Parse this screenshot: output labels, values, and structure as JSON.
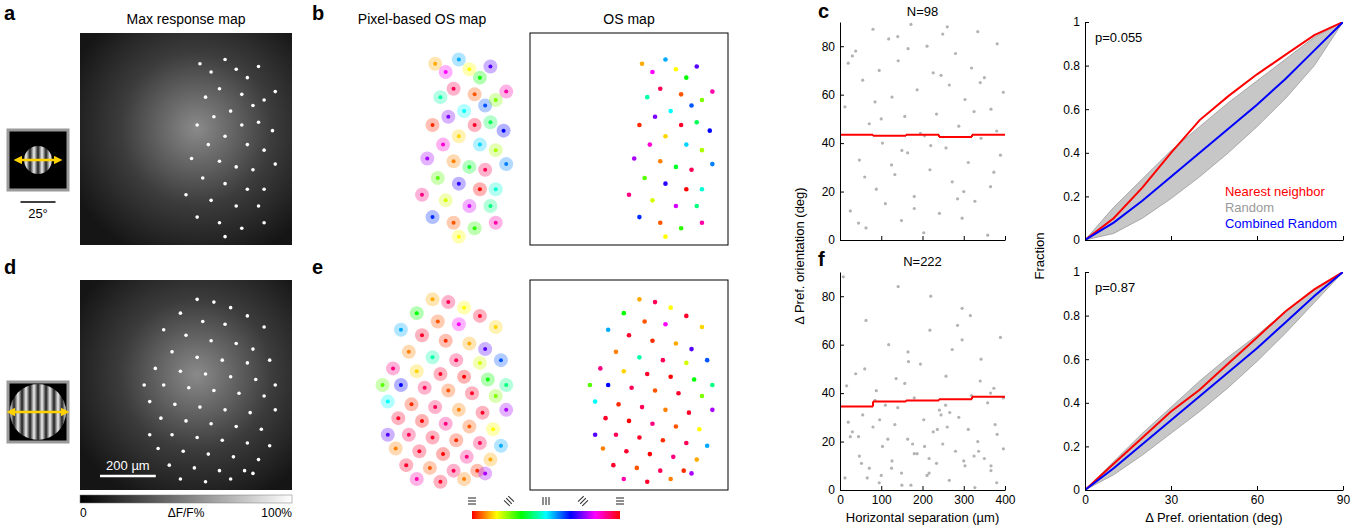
{
  "chart_data": [
    {
      "type": "stimulus",
      "letter": "a",
      "diameter": 20,
      "scale_bar": {
        "length": 25,
        "label": "25°"
      }
    },
    {
      "type": "image",
      "title": "Max response map"
    },
    {
      "type": "image",
      "letter": "b",
      "title": "Pixel-based OS map"
    },
    {
      "type": "scatter",
      "title": "OS map",
      "tick_labels": false,
      "marker": "circle",
      "xlim": [
        0,
        760
      ],
      "ylim": [
        0,
        760
      ],
      "x": [
        430,
        470,
        520,
        560,
        600,
        640,
        500,
        450,
        580,
        620,
        660,
        700,
        540,
        480,
        420,
        580,
        640,
        690,
        520,
        460,
        600,
        660,
        400,
        500,
        560,
        620,
        700,
        440,
        520,
        600,
        660,
        380,
        470,
        560,
        640,
        420,
        500,
        580,
        660,
        520
      ],
      "y": [
        110,
        140,
        95,
        130,
        160,
        120,
        200,
        230,
        220,
        260,
        240,
        210,
        280,
        300,
        330,
        330,
        320,
        350,
        370,
        400,
        400,
        420,
        450,
        460,
        480,
        490,
        470,
        520,
        540,
        560,
        560,
        580,
        600,
        620,
        620,
        660,
        680,
        700,
        680,
        730
      ],
      "pref_orientation": [
        20,
        150,
        100,
        30,
        60,
        130,
        170,
        80,
        10,
        110,
        45,
        160,
        90,
        135,
        5,
        175,
        70,
        120,
        25,
        155,
        95,
        40,
        140,
        15,
        65,
        170,
        105,
        50,
        125,
        0,
        85,
        165,
        35,
        145,
        75,
        115,
        10,
        55,
        160,
        30
      ]
    },
    {
      "type": "scatter",
      "letter": "c",
      "title": "N=98",
      "tick_labels": "y",
      "marker": "circle",
      "color": "#808080",
      "xlim": [
        0,
        400
      ],
      "ylim": [
        0,
        90
      ],
      "xticks": [
        0,
        100,
        200,
        300,
        400
      ],
      "yticks": [
        0,
        20,
        40,
        60,
        80
      ],
      "x": [
        12,
        25,
        38,
        47,
        55,
        63,
        71,
        80,
        88,
        95,
        103,
        110,
        118,
        126,
        133,
        141,
        149,
        157,
        164,
        172,
        180,
        187,
        195,
        203,
        211,
        218,
        226,
        234,
        241,
        249,
        257,
        265,
        272,
        280,
        288,
        296,
        303,
        311,
        319,
        327,
        334,
        342,
        350,
        358,
        366,
        373,
        381,
        389,
        396,
        20,
        60,
        100,
        140,
        180,
        220,
        260,
        300,
        340,
        380,
        45,
        85,
        125,
        165,
        205,
        245,
        285,
        325,
        365,
        30,
        150
      ],
      "y": [
        55,
        12,
        78,
        33,
        66,
        5,
        48,
        87,
        21,
        70,
        40,
        15,
        83,
        59,
        27,
        74,
        8,
        51,
        36,
        89,
        18,
        62,
        44,
        3,
        80,
        29,
        69,
        52,
        11,
        85,
        38,
        64,
        24,
        77,
        47,
        9,
        58,
        32,
        71,
        16,
        86,
        42,
        67,
        2,
        54,
        28,
        81,
        35,
        61,
        73,
        26,
        50,
        84,
        13,
        39,
        88,
        20,
        65,
        45,
        7,
        57,
        31,
        79,
        43,
        68,
        17,
        53,
        22,
        76,
        37
      ],
      "mean_line": {
        "color": "#ff0000",
        "bins": [
          0,
          80,
          160,
          240,
          320,
          400
        ],
        "values": [
          43.5,
          43,
          43.5,
          42.5,
          43.5
        ]
      }
    },
    {
      "type": "line",
      "annotation": "p=0.055",
      "tick_labels": "y",
      "legend": "lower right",
      "xlim": [
        0,
        90
      ],
      "ylim": [
        0,
        1
      ],
      "xticks": [
        0,
        30,
        60,
        90
      ],
      "yticks": [
        0,
        0.2,
        0.4,
        0.6,
        0.8,
        1
      ],
      "x": [
        0,
        10,
        20,
        30,
        40,
        50,
        60,
        70,
        80,
        90
      ],
      "series": [
        {
          "name": "Nearest neighbor",
          "color": "#ff0000",
          "values": [
            0,
            0.1,
            0.24,
            0.4,
            0.55,
            0.66,
            0.76,
            0.85,
            0.94,
            1
          ]
        },
        {
          "name": "Random",
          "color": "#999999",
          "type": "area",
          "lower": [
            0,
            0.03,
            0.1,
            0.19,
            0.29,
            0.4,
            0.52,
            0.65,
            0.8,
            1
          ],
          "upper": [
            0,
            0.15,
            0.28,
            0.41,
            0.52,
            0.63,
            0.73,
            0.83,
            0.93,
            1
          ]
        },
        {
          "name": "Combined Random",
          "color": "#0000ff",
          "values": [
            0,
            0.08,
            0.18,
            0.29,
            0.4,
            0.51,
            0.62,
            0.74,
            0.87,
            1
          ]
        }
      ]
    },
    {
      "type": "stimulus",
      "letter": "d",
      "diameter": 40
    },
    {
      "type": "image",
      "scale_bar": {
        "length": 200,
        "label": "200 µm"
      },
      "colorbar": {
        "range": [
          0,
          100
        ],
        "ticks": [
          0,
          {
            "value": 100,
            "label": "100%"
          }
        ],
        "label": "ΔF/F%"
      }
    },
    {
      "type": "image",
      "letter": "e"
    },
    {
      "type": "scatter",
      "tick_labels": false,
      "marker": "circle",
      "xlim": [
        0,
        760
      ],
      "ylim": [
        0,
        760
      ],
      "x": [
        420,
        480,
        540,
        360,
        600,
        440,
        520,
        300,
        660,
        380,
        470,
        560,
        620,
        330,
        420,
        510,
        600,
        680,
        270,
        360,
        450,
        540,
        630,
        300,
        390,
        480,
        570,
        660,
        250,
        340,
        430,
        520,
        610,
        700,
        290,
        380,
        470,
        560,
        650,
        330,
        420,
        510,
        600,
        680,
        280,
        370,
        460,
        550,
        640,
        320,
        410,
        500,
        590,
        360,
        450,
        540,
        250,
        700,
        230,
        620
      ],
      "y": [
        70,
        80,
        100,
        120,
        130,
        150,
        160,
        180,
        170,
        200,
        220,
        230,
        250,
        260,
        280,
        290,
        300,
        290,
        320,
        330,
        340,
        350,
        360,
        380,
        390,
        400,
        410,
        420,
        440,
        450,
        460,
        470,
        480,
        470,
        500,
        510,
        520,
        530,
        540,
        560,
        570,
        580,
        590,
        600,
        610,
        620,
        630,
        640,
        650,
        670,
        680,
        690,
        690,
        720,
        730,
        720,
        560,
        380,
        380,
        700
      ],
      "pref_orientation": [
        20,
        170,
        30,
        60,
        175,
        10,
        150,
        100,
        25,
        175,
        5,
        20,
        130,
        15,
        80,
        170,
        35,
        110,
        165,
        25,
        175,
        0,
        60,
        120,
        170,
        10,
        175,
        45,
        90,
        5,
        170,
        15,
        175,
        140,
        175,
        0,
        165,
        10,
        30,
        170,
        175,
        5,
        170,
        100,
        15,
        175,
        0,
        165,
        20,
        175,
        10,
        170,
        5,
        160,
        175,
        15,
        130,
        75,
        50,
        140
      ]
    },
    {
      "type": "scatter",
      "letter": "f",
      "title": "N=222",
      "xlabel": "Horizontal separation (µm)",
      "ylabel": "Δ Pref. orientation (deg)",
      "marker": "circle",
      "color": "#808080",
      "xlim": [
        0,
        400
      ],
      "ylim": [
        0,
        90
      ],
      "xticks": [
        0,
        100,
        200,
        300,
        400
      ],
      "yticks": [
        0,
        20,
        40,
        60,
        80
      ],
      "x": [
        12,
        25,
        38,
        47,
        55,
        63,
        71,
        80,
        88,
        95,
        103,
        110,
        118,
        126,
        133,
        141,
        149,
        157,
        164,
        172,
        180,
        187,
        195,
        203,
        211,
        218,
        226,
        234,
        241,
        249,
        257,
        265,
        272,
        280,
        288,
        296,
        303,
        311,
        319,
        327,
        334,
        342,
        350,
        358,
        366,
        373,
        381,
        389,
        396,
        20,
        60,
        100,
        140,
        180,
        220,
        260,
        300,
        340,
        380,
        45,
        85,
        125,
        165,
        205,
        245,
        285,
        325,
        365,
        30,
        150,
        8,
        52,
        96,
        136,
        176,
        216,
        256,
        296,
        336,
        376,
        16,
        66,
        116,
        166,
        216,
        266,
        316,
        366,
        396,
        236
      ],
      "y": [
        5,
        22,
        48,
        14,
        31,
        70,
        9,
        26,
        41,
        3,
        18,
        35,
        60,
        12,
        27,
        84,
        7,
        44,
        21,
        2,
        38,
        15,
        52,
        29,
        6,
        66,
        24,
        11,
        33,
        19,
        47,
        4,
        58,
        16,
        30,
        75,
        10,
        25,
        39,
        1,
        20,
        54,
        13,
        36,
        8,
        42,
        23,
        63,
        17,
        28,
        50,
        6,
        34,
        15,
        80,
        26,
        12,
        45,
        3,
        22,
        37,
        9,
        57,
        18,
        31,
        68,
        14,
        40,
        24,
        2,
        88,
        11,
        29,
        46,
        19,
        7,
        35,
        62,
        16,
        27,
        43,
        5,
        21,
        53,
        13,
        32,
        72,
        10,
        38,
        25
      ],
      "mean_line": {
        "color": "#ff0000",
        "bins": [
          0,
          80,
          160,
          240,
          320,
          400
        ],
        "values": [
          34.5,
          36.5,
          37,
          37.5,
          38.5
        ]
      }
    },
    {
      "type": "line",
      "annotation": "p=0.87",
      "xlabel": "Δ Pref. orientation (deg)",
      "ylabel": "Fraction",
      "xlim": [
        0,
        90
      ],
      "ylim": [
        0,
        1
      ],
      "xticks": [
        0,
        30,
        60,
        90
      ],
      "yticks": [
        0,
        0.2,
        0.4,
        0.6,
        0.8,
        1
      ],
      "x": [
        0,
        10,
        20,
        30,
        40,
        50,
        60,
        70,
        80,
        90
      ],
      "series": [
        {
          "name": "Nearest neighbor",
          "color": "#ff0000",
          "values": [
            0,
            0.12,
            0.24,
            0.36,
            0.46,
            0.58,
            0.7,
            0.82,
            0.92,
            1
          ]
        },
        {
          "name": "Random",
          "color": "#999999",
          "type": "area",
          "lower": [
            0,
            0.07,
            0.16,
            0.26,
            0.36,
            0.47,
            0.59,
            0.72,
            0.86,
            1
          ],
          "upper": [
            0,
            0.13,
            0.26,
            0.38,
            0.5,
            0.61,
            0.71,
            0.82,
            0.92,
            1
          ]
        },
        {
          "name": "Combined Random",
          "color": "#0000ff",
          "values": [
            0,
            0.1,
            0.21,
            0.32,
            0.43,
            0.54,
            0.65,
            0.77,
            0.89,
            1
          ]
        }
      ]
    },
    {
      "type": "colorbar",
      "range": [
        0,
        180
      ],
      "ticks": [
        0,
        45,
        90,
        135,
        180
      ]
    }
  ]
}
